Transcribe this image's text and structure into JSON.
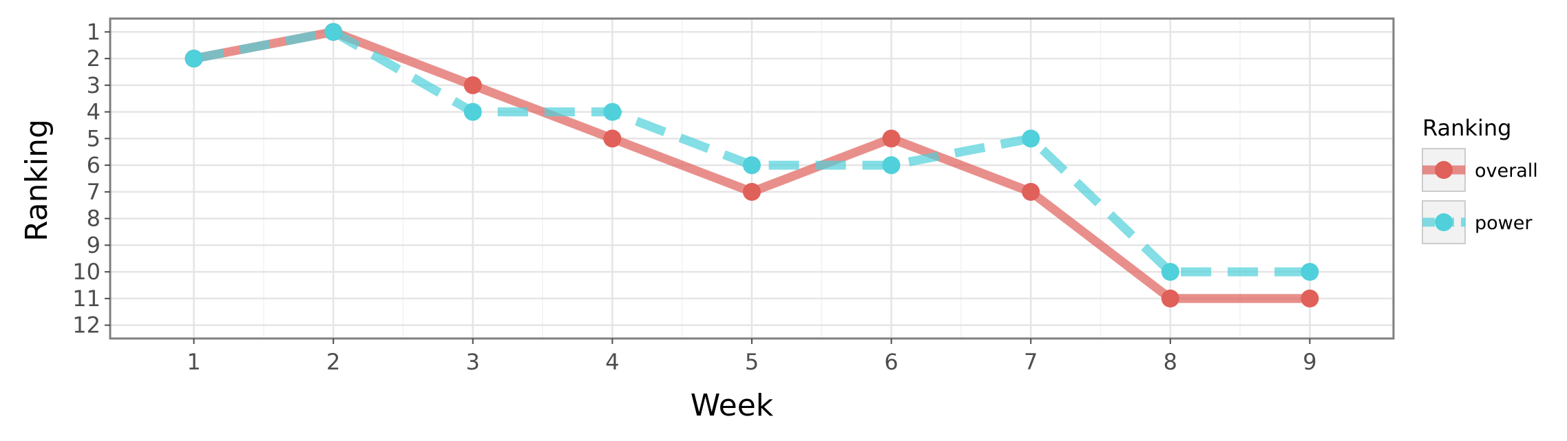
{
  "chart_data": {
    "type": "line",
    "xlabel": "Week",
    "ylabel": "Ranking",
    "x": [
      1,
      2,
      3,
      4,
      5,
      6,
      7,
      8,
      9
    ],
    "xlim": [
      0.4,
      9.6
    ],
    "ylim": [
      12.5,
      0.5
    ],
    "y_reversed": true,
    "x_ticks": [
      1,
      2,
      3,
      4,
      5,
      6,
      7,
      8,
      9
    ],
    "y_ticks": [
      1,
      2,
      3,
      4,
      5,
      6,
      7,
      8,
      9,
      10,
      11,
      12
    ],
    "grid": true,
    "legend": {
      "title": "Ranking",
      "position": "right"
    },
    "series": [
      {
        "name": "overall",
        "values": [
          2,
          1,
          3,
          5,
          7,
          5,
          7,
          11,
          11
        ],
        "color": "#e0605a",
        "line_style": "solid"
      },
      {
        "name": "power",
        "values": [
          2,
          1,
          4,
          4,
          6,
          6,
          5,
          10,
          10
        ],
        "color": "#4fd0da",
        "line_style": "dashed"
      }
    ]
  }
}
